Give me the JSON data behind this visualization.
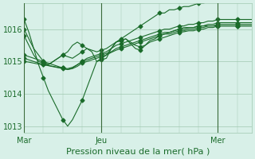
{
  "title": "",
  "xlabel": "Pression niveau de la mer( hPa )",
  "bg_color": "#d8f0e8",
  "grid_color": "#a0c8b0",
  "line_color": "#1a6b2a",
  "vline_color": "#3a6b3a",
  "xtick_labels": [
    "Mar",
    "Jeu",
    "Mer"
  ],
  "xtick_positions": [
    0,
    48,
    144
  ],
  "ylim": [
    1012.8,
    1016.8
  ],
  "yticks": [
    1013,
    1014,
    1015,
    1016
  ],
  "series": [
    [
      1016.3,
      1015.9,
      1015.4,
      1014.9,
      1014.5,
      1014.1,
      1013.8,
      1013.5,
      1013.2,
      1013.0,
      1013.2,
      1013.5,
      1013.8,
      1014.2,
      1014.6,
      1015.0,
      1015.1,
      1015.2,
      1015.4,
      1015.6,
      1015.7,
      1015.8,
      1015.9,
      1016.0,
      1016.1,
      1016.2,
      1016.3,
      1016.4,
      1016.5,
      1016.5,
      1016.6,
      1016.6,
      1016.65,
      1016.7,
      1016.7,
      1016.75,
      1016.8,
      1016.8,
      1016.85,
      1016.85,
      1016.9,
      1016.9,
      1016.9,
      1016.9,
      1016.9,
      1016.9,
      1016.9,
      1016.9
    ],
    [
      1015.2,
      1015.15,
      1015.1,
      1015.05,
      1015.0,
      1014.95,
      1014.9,
      1014.85,
      1014.8,
      1014.75,
      1014.8,
      1014.9,
      1015.0,
      1015.1,
      1015.15,
      1015.2,
      1015.25,
      1015.3,
      1015.4,
      1015.5,
      1015.55,
      1015.6,
      1015.65,
      1015.7,
      1015.75,
      1015.8,
      1015.85,
      1015.9,
      1015.95,
      1016.0,
      1016.0,
      1016.05,
      1016.1,
      1016.1,
      1016.15,
      1016.15,
      1016.2,
      1016.2,
      1016.25,
      1016.25,
      1016.3,
      1016.3,
      1016.3,
      1016.3,
      1016.3,
      1016.3,
      1016.3,
      1016.3
    ],
    [
      1015.1,
      1015.05,
      1015.0,
      1014.95,
      1014.9,
      1014.88,
      1014.85,
      1014.82,
      1014.8,
      1014.78,
      1014.82,
      1014.9,
      1015.0,
      1015.05,
      1015.1,
      1015.15,
      1015.2,
      1015.25,
      1015.3,
      1015.4,
      1015.45,
      1015.5,
      1015.55,
      1015.6,
      1015.65,
      1015.7,
      1015.75,
      1015.8,
      1015.85,
      1015.9,
      1015.9,
      1015.95,
      1016.0,
      1016.0,
      1016.05,
      1016.05,
      1016.1,
      1016.1,
      1016.15,
      1016.15,
      1016.2,
      1016.2,
      1016.2,
      1016.2,
      1016.2,
      1016.2,
      1016.2,
      1016.2
    ],
    [
      1015.0,
      1014.98,
      1014.95,
      1014.92,
      1014.9,
      1014.87,
      1014.84,
      1014.81,
      1014.78,
      1014.75,
      1014.78,
      1014.85,
      1014.95,
      1015.0,
      1015.05,
      1015.1,
      1015.15,
      1015.2,
      1015.28,
      1015.35,
      1015.4,
      1015.45,
      1015.5,
      1015.55,
      1015.6,
      1015.65,
      1015.7,
      1015.75,
      1015.8,
      1015.85,
      1015.85,
      1015.9,
      1015.95,
      1015.95,
      1016.0,
      1016.0,
      1016.05,
      1016.05,
      1016.1,
      1016.1,
      1016.15,
      1016.15,
      1016.15,
      1016.15,
      1016.15,
      1016.15,
      1016.15,
      1016.15
    ],
    [
      1015.8,
      1015.5,
      1015.2,
      1015.0,
      1014.95,
      1014.9,
      1015.0,
      1015.1,
      1015.2,
      1015.15,
      1015.1,
      1015.2,
      1015.3,
      1015.4,
      1015.35,
      1015.3,
      1015.35,
      1015.4,
      1015.5,
      1015.6,
      1015.65,
      1015.7,
      1015.6,
      1015.5,
      1015.45,
      1015.5,
      1015.6,
      1015.65,
      1015.7,
      1015.75,
      1015.8,
      1015.85,
      1015.9,
      1015.92,
      1015.95,
      1015.95,
      1016.0,
      1016.0,
      1016.05,
      1016.05,
      1016.1,
      1016.1,
      1016.1,
      1016.1,
      1016.1,
      1016.1,
      1016.1,
      1016.1
    ],
    [
      1016.0,
      1015.7,
      1015.4,
      1015.2,
      1015.0,
      1014.9,
      1015.0,
      1015.1,
      1015.2,
      1015.3,
      1015.5,
      1015.6,
      1015.5,
      1015.4,
      1015.3,
      1015.0,
      1015.05,
      1015.1,
      1015.4,
      1015.6,
      1015.65,
      1015.7,
      1015.55,
      1015.4,
      1015.35,
      1015.5,
      1015.65,
      1015.7,
      1015.8,
      1015.85,
      1015.9,
      1015.95,
      1016.0,
      1016.05,
      1016.05,
      1016.05,
      1016.1,
      1016.1,
      1016.1,
      1016.1,
      1016.1,
      1016.1,
      1016.1,
      1016.1,
      1016.1,
      1016.1,
      1016.1,
      1016.1
    ]
  ],
  "n_points": 48
}
